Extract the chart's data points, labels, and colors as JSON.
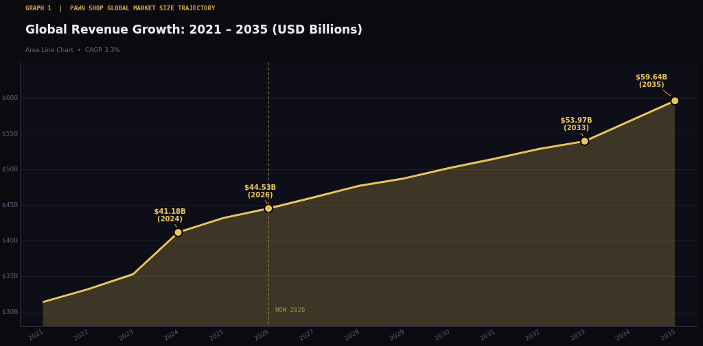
{
  "chart_data": {
    "type": "area",
    "title": "Global Revenue Growth: 2021 – 2035 (USD Billions)",
    "subtitle": "Area Line Chart  •  CAGR 3.3%",
    "annotations": [
      "GRAPH 1  |  PAWN SHOP GLOBAL MARKET SIZE TRAJECTORY",
      {
        "text": "$41.18B\n(2024)",
        "x": 2024,
        "y": 41.18
      },
      {
        "text": "$44.53B\n(2026)",
        "x": 2026,
        "y": 44.53
      },
      {
        "text": "$53.97B\n(2033)",
        "x": 2033,
        "y": 53.97
      },
      {
        "text": "$59.64B\n(2035)",
        "x": 2035,
        "y": 59.64
      }
    ],
    "x": [
      2021,
      2022,
      2023,
      2024,
      2025,
      2026,
      2027,
      2028,
      2029,
      2030,
      2031,
      2032,
      2033,
      2034,
      2035
    ],
    "series": [
      {
        "color": "#e8c55c",
        "values": [
          31.4,
          33.2,
          35.3,
          41.18,
          43.2,
          44.53,
          46.1,
          47.7,
          48.75,
          50.2,
          51.5,
          52.9,
          53.97,
          56.8,
          59.64
        ]
      }
    ],
    "xlim": [
      2020.5,
      2035.5
    ],
    "xticks": [
      2021,
      2022,
      2023,
      2024,
      2025,
      2026,
      2027,
      2028,
      2029,
      2030,
      2031,
      2032,
      2033,
      2034,
      2035
    ],
    "ylim": [
      28,
      65
    ],
    "yticks": [
      {
        "value": 30,
        "label": "$30B"
      },
      {
        "value": 35,
        "label": "$35B"
      },
      {
        "value": 40,
        "label": "$40B"
      },
      {
        "value": 45,
        "label": "$45B"
      },
      {
        "value": 50,
        "label": "$50B"
      },
      {
        "value": 55,
        "label": "$55B"
      },
      {
        "value": 60,
        "label": "$60B"
      }
    ],
    "ref_lines": [
      {
        "axis": "x",
        "value": 2026,
        "label": "NOW 2026",
        "color": "#a8873a",
        "line_style": "dashed"
      }
    ],
    "grid": "y",
    "legend": false
  }
}
